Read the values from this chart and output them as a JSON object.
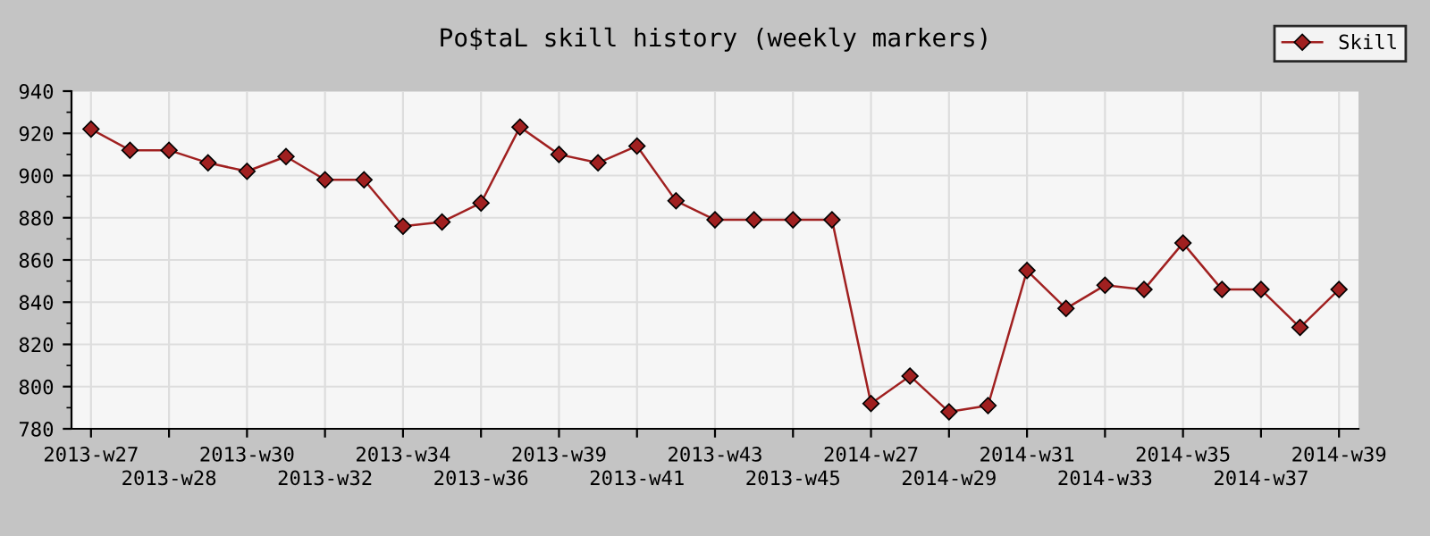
{
  "chart_data": {
    "type": "line",
    "title": "Po$taL skill history (weekly markers)",
    "categories": [
      "2013-w27",
      null,
      "2013-w28",
      null,
      "2013-w30",
      null,
      "2013-w32",
      null,
      "2013-w34",
      null,
      "2013-w36",
      null,
      "2013-w39",
      null,
      "2013-w41",
      null,
      "2013-w43",
      null,
      "2013-w45",
      null,
      "2014-w27",
      null,
      "2014-w29",
      null,
      "2014-w31",
      null,
      "2014-w33",
      null,
      "2014-w35",
      null,
      "2014-w37",
      null,
      "2014-w39"
    ],
    "series": [
      {
        "name": "Skill",
        "color": "#a02020",
        "values": [
          922,
          912,
          912,
          906,
          902,
          909,
          898,
          898,
          876,
          878,
          887,
          923,
          910,
          906,
          914,
          888,
          879,
          879,
          879,
          879,
          792,
          805,
          788,
          791,
          855,
          837,
          848,
          846,
          868,
          846,
          846,
          828,
          846
        ]
      }
    ],
    "ylim": [
      780,
      940
    ],
    "yticks": [
      780,
      800,
      820,
      840,
      860,
      880,
      900,
      920,
      940
    ],
    "grid": true,
    "legend": "top right",
    "marker": "diamond",
    "line_style": "solid"
  }
}
